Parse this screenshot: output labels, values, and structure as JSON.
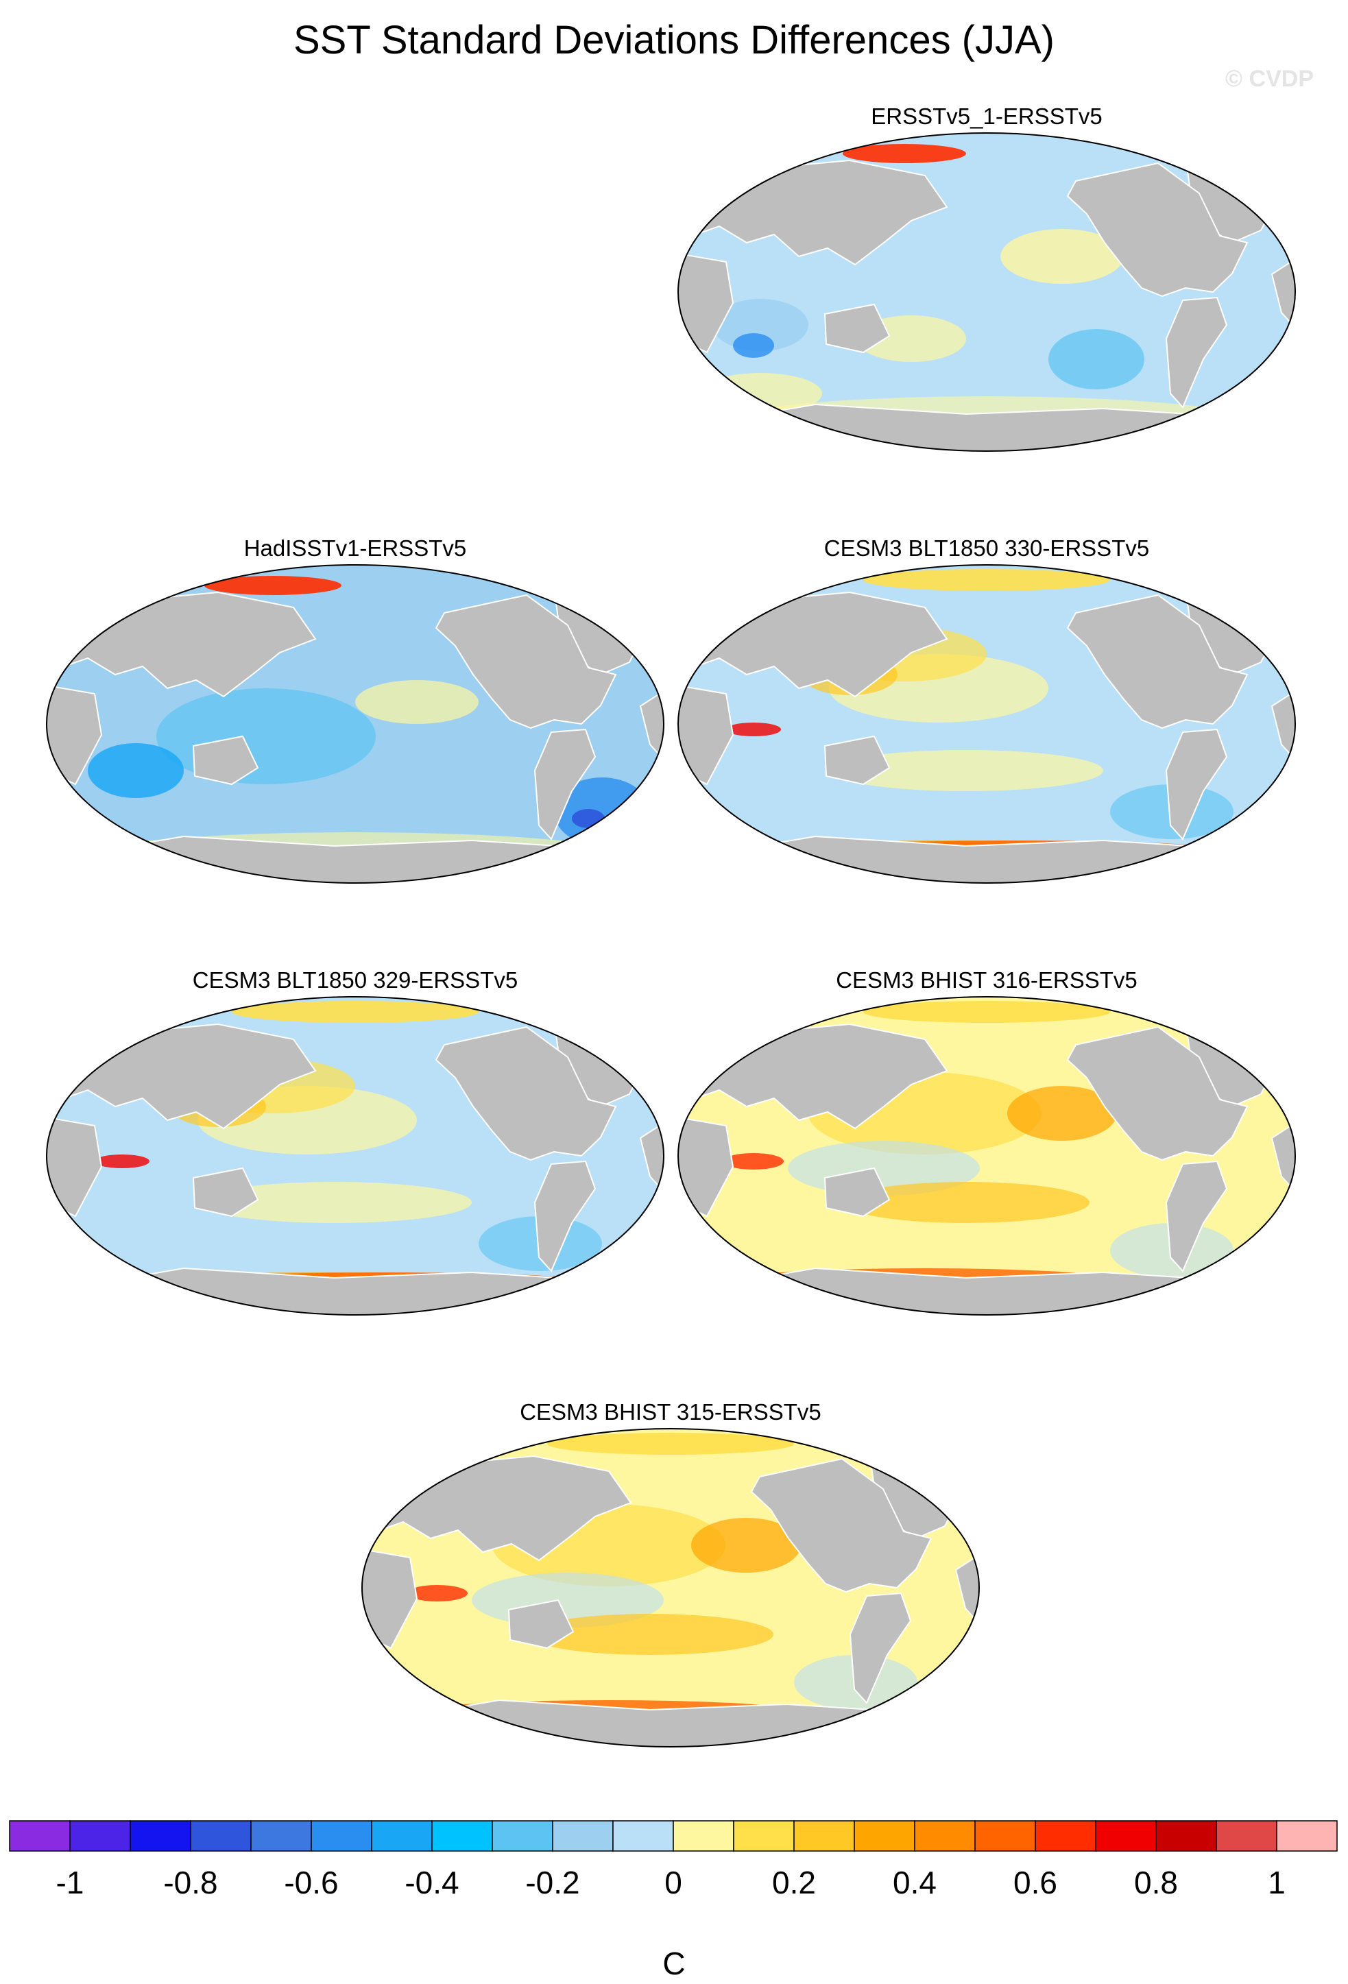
{
  "figure": {
    "title": "SST Standard Deviations Differences (JJA)",
    "watermark": "© CVDP",
    "units_label": "C"
  },
  "panels": [
    {
      "title": "ERSSTv5_1-ERSSTv5",
      "pattern": "neg"
    },
    {
      "title": "HadISSTv1-ERSSTv5",
      "pattern": "neg2"
    },
    {
      "title": "CESM3 BLT1850 330-ERSSTv5",
      "pattern": "mixed"
    },
    {
      "title": "CESM3 BLT1850 329-ERSSTv5",
      "pattern": "mixed"
    },
    {
      "title": "CESM3 BHIST 316-ERSSTv5",
      "pattern": "pos"
    },
    {
      "title": "CESM3 BHIST 315-ERSSTv5",
      "pattern": "pos"
    }
  ],
  "colorbar": {
    "colors": [
      "#8a2be2",
      "#4b24e8",
      "#1414f0",
      "#2f55dc",
      "#3c78e0",
      "#2a8ef0",
      "#18a6f5",
      "#00c2ff",
      "#5cc3f2",
      "#9ccff0",
      "#b9e0f7",
      "#fff6a0",
      "#ffe04a",
      "#ffc824",
      "#ffa500",
      "#ff8c00",
      "#ff6400",
      "#ff2d00",
      "#f00000",
      "#c80000",
      "#e04848",
      "#ffb4b4"
    ],
    "tick_labels": [
      "-1",
      "-0.8",
      "-0.6",
      "-0.4",
      "-0.2",
      "0",
      "0.2",
      "0.4",
      "0.6",
      "0.8",
      "1"
    ]
  },
  "land_color": "#bebebe",
  "coast_color": "#ffffff"
}
